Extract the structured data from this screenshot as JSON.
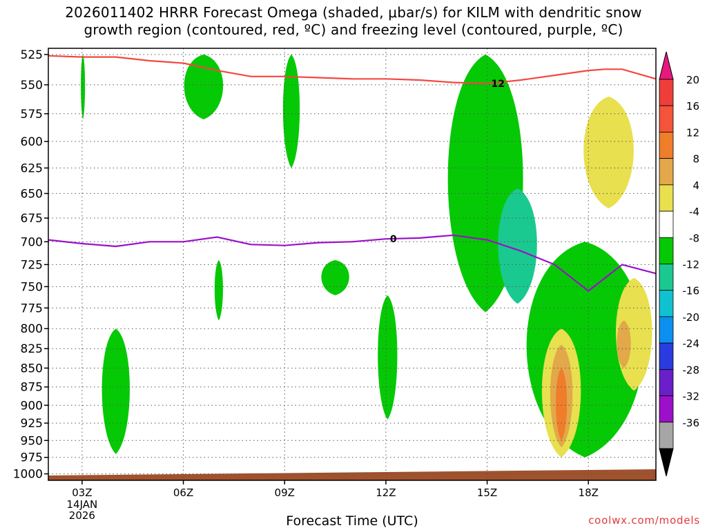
{
  "title_line1": "2026011402 HRRR Forecast Omega (shaded, μbar/s) for KILM with dendritic snow",
  "title_line2": "growth region (contoured, red, ºC) and freezing level (contoured, purple, ºC)",
  "credit": "coolwx.com/models",
  "chart_data": {
    "type": "time-height cross section",
    "title": "2026011402 HRRR Forecast Omega (shaded, μbar/s) for KILM with dendritic snow growth region (contoured, red, ºC) and freezing level (contoured, purple, ºC)",
    "xlabel": "Forecast Time (UTC)",
    "ylabel": "",
    "x_ticks": [
      "03Z",
      "06Z",
      "09Z",
      "12Z",
      "15Z",
      "18Z"
    ],
    "x_tick_sub": [
      "14JAN",
      "2026"
    ],
    "y_ticks": [
      525,
      550,
      575,
      600,
      625,
      650,
      675,
      700,
      725,
      750,
      775,
      800,
      825,
      850,
      875,
      900,
      925,
      950,
      975,
      1000
    ],
    "y_scale": "log pressure (hPa), inverted",
    "grid": true,
    "colorbar_labels": [
      "20",
      "16",
      "12",
      "8",
      "4",
      "-4",
      "-8",
      "-12",
      "-16",
      "-20",
      "-24",
      "-28",
      "-32",
      "-36"
    ],
    "colorbar_colors": [
      "#e8187d",
      "#ef3e3a",
      "#f4543a",
      "#ef7d2a",
      "#e2a84a",
      "#e8e04e",
      "#ffffff",
      "#05c905",
      "#1ac98f",
      "#10c2d0",
      "#0d8ff0",
      "#2a3ce0",
      "#6a1fc8",
      "#9b10c8",
      "#a6a6a6",
      "#000000"
    ],
    "series": [
      {
        "name": "12",
        "color": "#f4473f",
        "x": [
          2,
          3,
          4,
          5,
          6,
          7,
          8,
          9,
          10,
          11,
          12,
          13,
          14,
          15,
          16,
          17,
          18,
          18.5,
          19,
          20
        ],
        "y": [
          526,
          527,
          527,
          530,
          532,
          538,
          543,
          543,
          544,
          545,
          545,
          546,
          548,
          549,
          546,
          542,
          538,
          537,
          537,
          545
        ]
      },
      {
        "name": "0",
        "color": "#9b10c8",
        "x": [
          2,
          3,
          4,
          5,
          6,
          7,
          8,
          9,
          10,
          11,
          12,
          13,
          14,
          15,
          16,
          17,
          18,
          19,
          20
        ],
        "y": [
          698,
          702,
          705,
          700,
          700,
          695,
          703,
          704,
          701,
          700,
          697,
          696,
          693,
          698,
          710,
          725,
          755,
          725,
          735
        ]
      }
    ],
    "omega_regions": [
      {
        "level": "-4",
        "x_range": [
          2.95,
          3.1
        ],
        "p_range": [
          525,
          580
        ]
      },
      {
        "level": "-4",
        "x_range": [
          5.9,
          7.3
        ],
        "p_range": [
          525,
          580
        ]
      },
      {
        "level": "-4",
        "x_range": [
          8.9,
          9.5
        ],
        "p_range": [
          525,
          625
        ]
      },
      {
        "level": "-4",
        "x_range": [
          6.9,
          7.2
        ],
        "p_range": [
          720,
          790
        ]
      },
      {
        "level": "-4",
        "x_range": [
          10,
          11
        ],
        "p_range": [
          720,
          760
        ]
      },
      {
        "level": "-4",
        "x_range": [
          11.7,
          12.4
        ],
        "p_range": [
          760,
          920
        ]
      },
      {
        "level": "-4",
        "x_range": [
          3.5,
          4.5
        ],
        "p_range": [
          800,
          970
        ]
      },
      {
        "level": "-4",
        "x_range": [
          13.6,
          16.3
        ],
        "p_range": [
          525,
          780
        ]
      },
      {
        "level": "-4",
        "x_range": [
          15.8,
          20
        ],
        "p_range": [
          700,
          975
        ]
      },
      {
        "level": "-8",
        "x_range": [
          15.2,
          16.6
        ],
        "p_range": [
          645,
          770
        ]
      },
      {
        "level": "4",
        "x_range": [
          17.7,
          19.5
        ],
        "p_range": [
          560,
          665
        ]
      },
      {
        "level": "4",
        "x_range": [
          16.5,
          17.9
        ],
        "p_range": [
          800,
          975
        ]
      },
      {
        "level": "8",
        "x_range": [
          16.8,
          17.6
        ],
        "p_range": [
          820,
          960
        ]
      },
      {
        "level": "12",
        "x_range": [
          17.0,
          17.4
        ],
        "p_range": [
          850,
          950
        ]
      },
      {
        "level": "4",
        "x_range": [
          18.7,
          20
        ],
        "p_range": [
          740,
          880
        ]
      },
      {
        "level": "8",
        "x_range": [
          18.8,
          19.3
        ],
        "p_range": [
          790,
          850
        ]
      }
    ],
    "ylim": [
      520,
      1010
    ],
    "xlim": [
      2,
      20
    ]
  }
}
